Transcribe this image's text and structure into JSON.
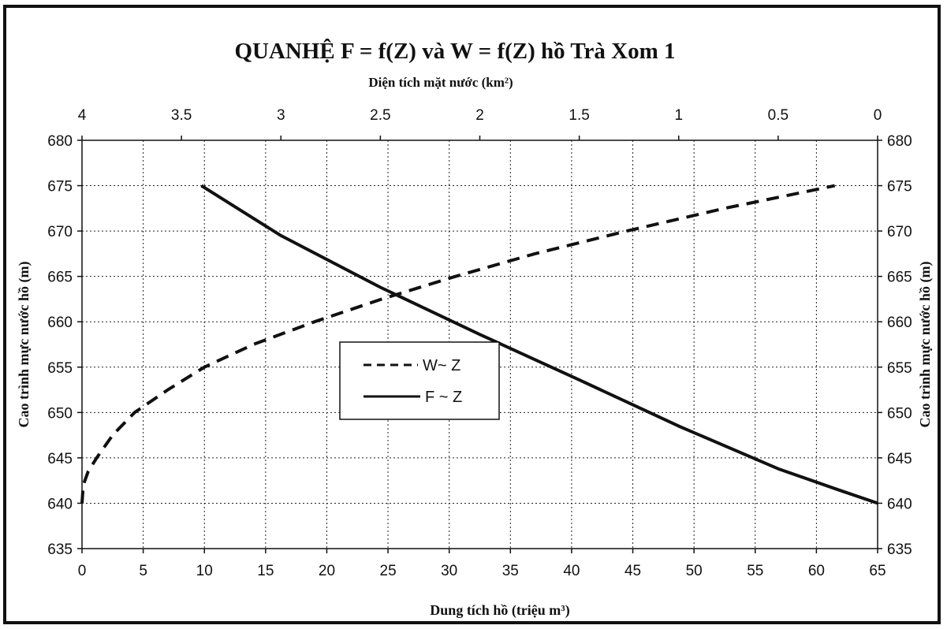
{
  "chart_data": {
    "type": "line",
    "title": "QUANHỆ F =  f(Z) và W =  f(Z) hồ Trà Xom 1",
    "top_axis_label": "Diện tích mặt nước (km²)",
    "xlabel": "Dung tích hồ  (triệu m³)",
    "ylabel_left": "Cao trình mực nước hồ (m)",
    "ylabel_right": "Cao trình mực nước hồ (m)",
    "x_bottom": {
      "lim": [
        0,
        65
      ],
      "ticks": [
        "0",
        "5",
        "10",
        "15",
        "20",
        "25",
        "30",
        "35",
        "40",
        "45",
        "50",
        "55",
        "60",
        "65"
      ]
    },
    "x_top": {
      "lim": [
        4,
        0
      ],
      "reversed": true,
      "ticks": [
        "4",
        "3.5",
        "3",
        "2.5",
        "2",
        "1.5",
        "1",
        "0.5",
        "0"
      ]
    },
    "y": {
      "lim": [
        635,
        680
      ],
      "ticks": [
        "635",
        "640",
        "645",
        "650",
        "655",
        "660",
        "665",
        "670",
        "675",
        "680"
      ]
    },
    "grid": true,
    "legend_position": "center-left",
    "series": [
      {
        "name": "W~ Z",
        "style": "dashed",
        "axis": "bottom",
        "points": [
          [
            0,
            640
          ],
          [
            0.1,
            642
          ],
          [
            0.5,
            643.5
          ],
          [
            1.2,
            645
          ],
          [
            2.5,
            647.5
          ],
          [
            4.3,
            650
          ],
          [
            7,
            652.5
          ],
          [
            10,
            655
          ],
          [
            14,
            657.5
          ],
          [
            19,
            660
          ],
          [
            24.5,
            662.5
          ],
          [
            30.5,
            665
          ],
          [
            37,
            667.5
          ],
          [
            44.5,
            670
          ],
          [
            52.5,
            672.5
          ],
          [
            61.5,
            675
          ]
        ]
      },
      {
        "name": "F ~ Z",
        "style": "solid",
        "axis": "top",
        "points": [
          [
            0,
            640
          ],
          [
            0.2,
            641.5
          ],
          [
            0.5,
            643.8
          ],
          [
            1.0,
            648.5
          ],
          [
            1.5,
            653.6
          ],
          [
            2.0,
            658.6
          ],
          [
            2.5,
            663.8
          ],
          [
            3.0,
            669.5
          ],
          [
            3.4,
            675
          ]
        ]
      }
    ]
  }
}
